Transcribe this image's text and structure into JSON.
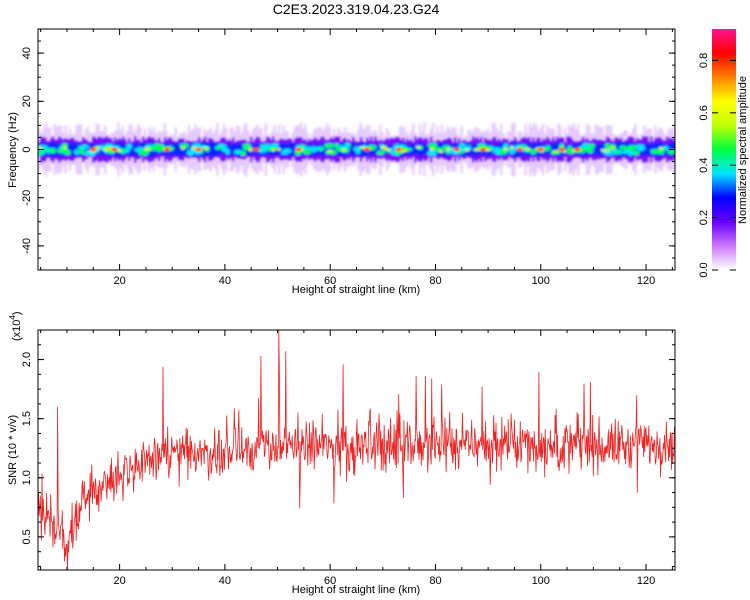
{
  "figure": {
    "title": "C2E3.2023.319.04.23.G24"
  },
  "chart_data": [
    {
      "type": "heatmap",
      "xlabel": "Height of straight line (km)",
      "ylabel": "Frequency (Hz)",
      "xlim": [
        4.5,
        125.5
      ],
      "ylim": [
        -50,
        50
      ],
      "xticks": [
        20,
        40,
        60,
        80,
        100,
        120
      ],
      "yticks": [
        -40,
        -20,
        0,
        20,
        40
      ],
      "band": {
        "center_hz": 0,
        "core_halfwidth_hz": 3,
        "outer_halfwidth_hz": 9,
        "peak_heights_km": [
          15,
          19,
          29,
          35,
          46,
          54,
          67,
          73,
          84,
          89,
          96,
          100,
          104,
          107
        ]
      },
      "colorbar": {
        "label": "Normalized spectral amplitude",
        "range": [
          0.0,
          0.92
        ],
        "ticks": [
          0.0,
          0.2,
          0.4,
          0.6,
          0.8
        ],
        "colormap": [
          "#ffffff",
          "#cc77ff",
          "#6600ff",
          "#0000ff",
          "#00e5ff",
          "#00ff40",
          "#c0ff00",
          "#ffff00",
          "#ff8000",
          "#ff0000",
          "#ff1493"
        ]
      },
      "grid": false
    },
    {
      "type": "line",
      "xlabel": "Height of straight line (km)",
      "ylabel": "SNR (10 * v/v)",
      "y_multiplier_base": "(x10",
      "y_multiplier_exp": "4",
      "y_multiplier_close": ")",
      "xlim": [
        4.5,
        125.5
      ],
      "ylim": [
        0.22,
        2.25
      ],
      "xticks": [
        20,
        40,
        60,
        80,
        100,
        120
      ],
      "yticks": [
        0.5,
        1.0,
        1.5,
        2.0
      ],
      "series": [
        {
          "color": "#ee2222",
          "summary_x": [
            5,
            8,
            10,
            12,
            15,
            20,
            25,
            30,
            40,
            50,
            60,
            70,
            80,
            90,
            100,
            110,
            120,
            125
          ],
          "summary_y": [
            0.75,
            0.6,
            0.35,
            0.75,
            0.9,
            1.05,
            1.12,
            1.18,
            1.22,
            1.27,
            1.27,
            1.27,
            1.28,
            1.28,
            1.28,
            1.27,
            1.28,
            1.3
          ],
          "notable_peaks": [
            {
              "x": 50.2,
              "y": 2.25
            },
            {
              "x": 46.8,
              "y": 2.03
            },
            {
              "x": 51.6,
              "y": 2.07
            },
            {
              "x": 28.3,
              "y": 1.94
            },
            {
              "x": 62.5,
              "y": 1.96
            },
            {
              "x": 78.1,
              "y": 1.86
            },
            {
              "x": 8.2,
              "y": 1.6
            },
            {
              "x": 10.1,
              "y": 0.22
            }
          ]
        }
      ],
      "grid": false
    }
  ]
}
